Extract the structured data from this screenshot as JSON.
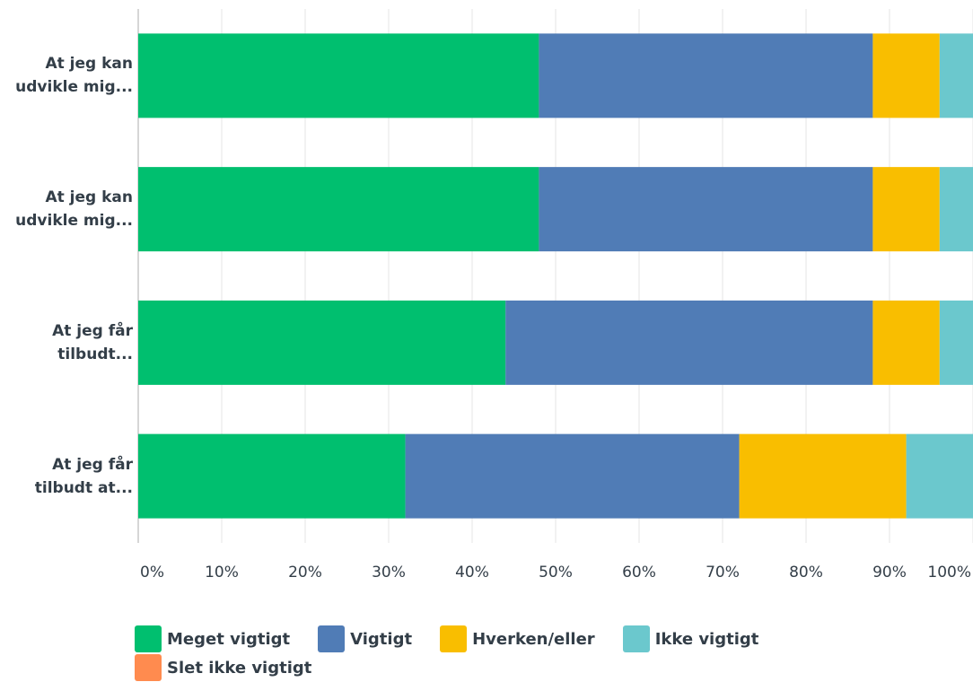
{
  "chart_data": {
    "type": "stacked-barh",
    "categories": [
      "At jeg kan udvikle mig...",
      "At jeg kan udvikle mig...",
      "At jeg får tilbudt...",
      "At jeg får tilbudt at..."
    ],
    "series": [
      {
        "name": "Meget vigtigt",
        "color": "#00bf6f",
        "values": [
          48,
          48,
          44,
          32
        ]
      },
      {
        "name": "Vigtigt",
        "color": "#507cb6",
        "values": [
          40,
          40,
          44,
          40
        ]
      },
      {
        "name": "Hverken/eller",
        "color": "#f9be00",
        "values": [
          8,
          8,
          8,
          20
        ]
      },
      {
        "name": "Ikke vigtigt",
        "color": "#6bc8cd",
        "values": [
          4,
          4,
          4,
          8
        ]
      },
      {
        "name": "Slet ikke vigtigt",
        "color": "#ff8b4f",
        "values": [
          0,
          0,
          0,
          0
        ]
      }
    ],
    "xlim": [
      0,
      100
    ],
    "xticks": [
      {
        "value": 0,
        "label": "0%"
      },
      {
        "value": 10,
        "label": "10%"
      },
      {
        "value": 20,
        "label": "20%"
      },
      {
        "value": 30,
        "label": "30%"
      },
      {
        "value": 40,
        "label": "40%"
      },
      {
        "value": 50,
        "label": "50%"
      },
      {
        "value": 60,
        "label": "60%"
      },
      {
        "value": 70,
        "label": "70%"
      },
      {
        "value": 80,
        "label": "80%"
      },
      {
        "value": 90,
        "label": "90%"
      },
      {
        "value": 100,
        "label": "100%"
      }
    ],
    "grid": true
  }
}
